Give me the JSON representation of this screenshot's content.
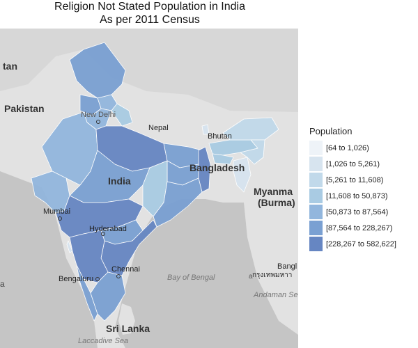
{
  "title": {
    "line1": "Religion Not Stated Population in India",
    "line2": "As per 2011 Census"
  },
  "map_labels": {
    "pakistan": "Pakistan",
    "afghanistan_partial": "tan",
    "new_delhi": "New Delhi",
    "nepal": "Nepal",
    "bhutan": "Bhutan",
    "bangladesh": "Bangladesh",
    "india": "India",
    "myanmar_line1": "Myanma",
    "myanmar_line2": "(Burma)",
    "mumbai": "Mumbai",
    "hyderabad": "Hyderabad",
    "chennai": "Chennai",
    "bengaluru": "Bengaluru",
    "bay_of_bengal": "Bay of Bengal",
    "andaman_sea": "Andaman Sea",
    "sri_lanka": "Sri Lanka",
    "laccadive_sea": "Laccadive Sea",
    "bangkok_partial": "Bangl",
    "bangkok_thai_partial": "กรุงเทพมหาา",
    "left_edge_partial": "a",
    "small_a": "a"
  },
  "legend": {
    "title": "Population",
    "items": [
      {
        "label": "[64 to 1,026)",
        "color": "#eef3f8"
      },
      {
        "label": "[1,026 to 5,261)",
        "color": "#d7e4ef"
      },
      {
        "label": "[5,261 to 11,608)",
        "color": "#c1d9ea"
      },
      {
        "label": "[11,608 to 50,873)",
        "color": "#a9cbe3"
      },
      {
        "label": "[50,873 to 87,564)",
        "color": "#92b6dd"
      },
      {
        "label": "[87,564 to 228,267)",
        "color": "#7aa0d2"
      },
      {
        "label": "[228,267 to 582,622]",
        "color": "#6686c2"
      }
    ]
  },
  "colors": {
    "land": "#e3e3e3",
    "water": "#c4c4c4",
    "border": "#ffffff"
  }
}
